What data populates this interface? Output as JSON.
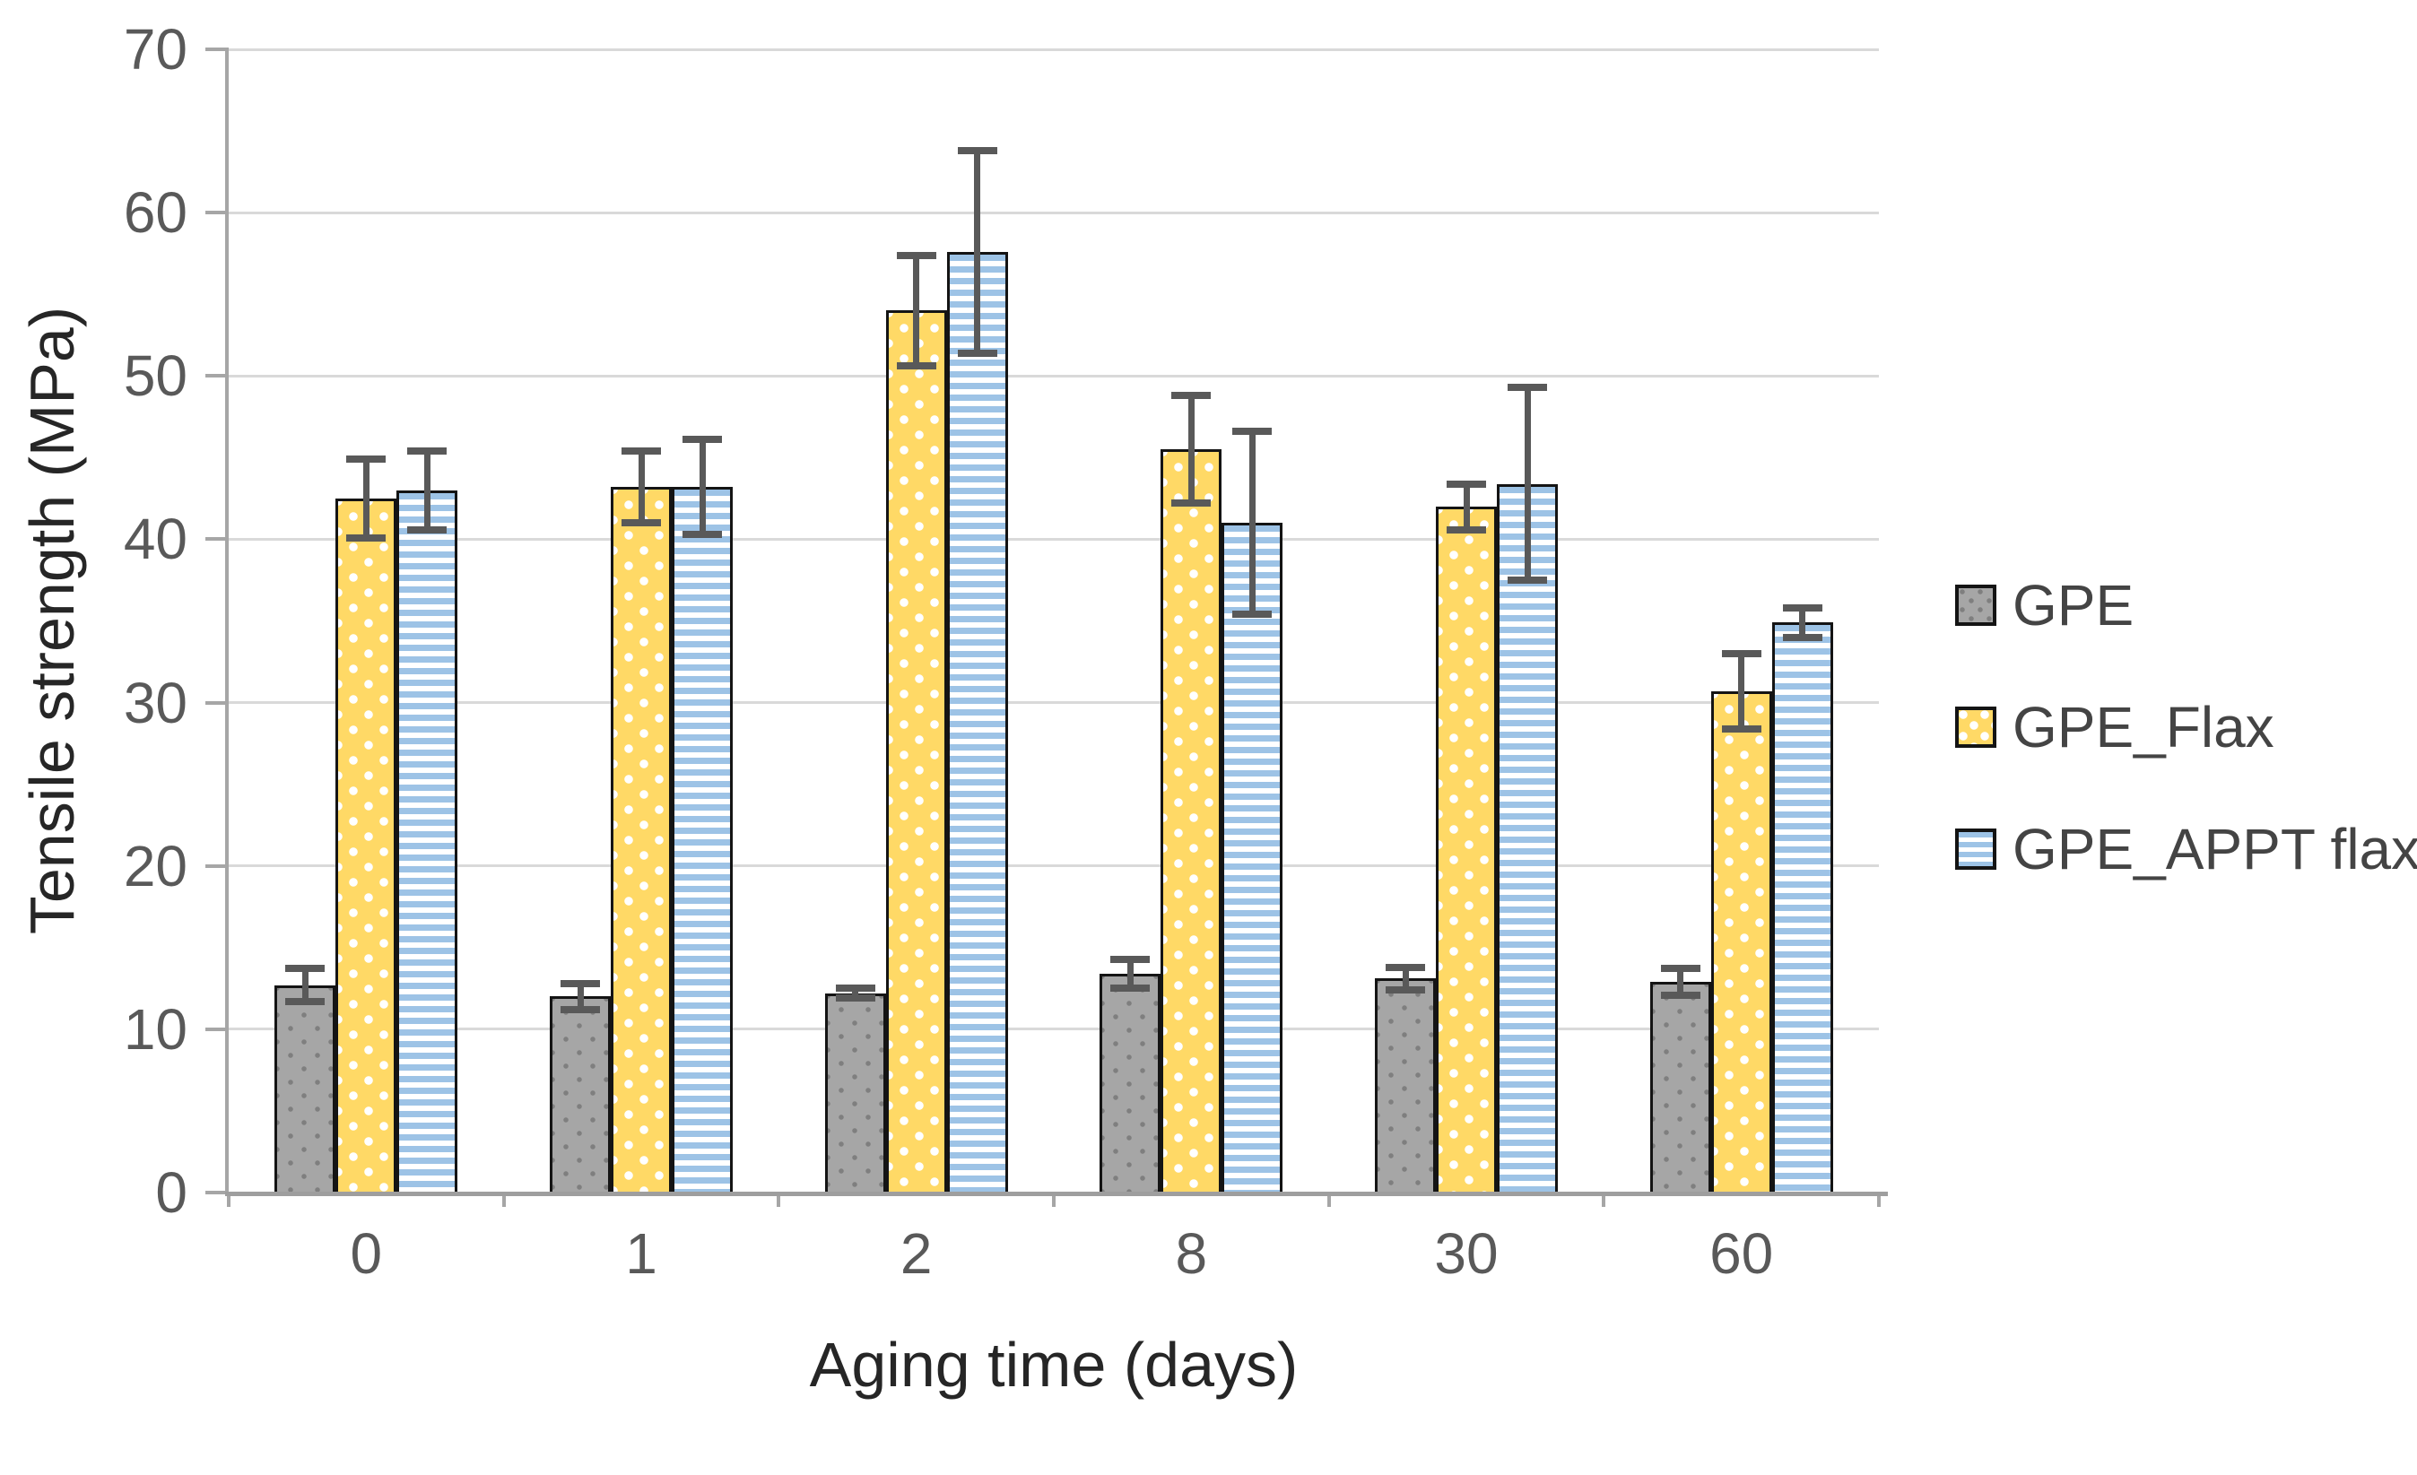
{
  "chart_data": {
    "type": "bar",
    "title": "",
    "xlabel": "Aging time (days)",
    "ylabel": "Tensile strength (MPa)",
    "categories": [
      "0",
      "1",
      "2",
      "8",
      "30",
      "60"
    ],
    "series": [
      {
        "name": "GPE",
        "pattern": "gray-dots",
        "fill": "#A6A6A6",
        "values": [
          12.7,
          12.0,
          12.2,
          13.4,
          13.1,
          12.9
        ],
        "errors": [
          1.0,
          0.8,
          0.3,
          0.9,
          0.7,
          0.8
        ]
      },
      {
        "name": "GPE_Flax",
        "pattern": "yellow-white-dots",
        "fill": "#FFD966",
        "values": [
          42.5,
          43.2,
          54.0,
          45.5,
          42.0,
          30.7
        ],
        "errors": [
          2.4,
          2.2,
          3.4,
          3.3,
          1.4,
          2.3
        ]
      },
      {
        "name": "GPE_APPT flax",
        "pattern": "blue-horizontal-stripes",
        "fill": "#9DC3E6",
        "values": [
          43.0,
          43.2,
          57.6,
          41.0,
          43.4,
          34.9
        ],
        "errors": [
          2.4,
          2.9,
          6.2,
          5.6,
          5.9,
          0.9
        ]
      }
    ],
    "ylim": [
      0,
      70
    ],
    "ytick_step": 10,
    "yticks": [
      0,
      10,
      20,
      30,
      40,
      50,
      60,
      70
    ],
    "grid": true,
    "legend_position": "right",
    "error_bar_color": "#595959",
    "bar_outline_color": "#141414",
    "axis_color": "#A6A6A6",
    "gridline_color": "#D9D9D9",
    "tick_label_color": "#595959",
    "axis_title_color": "#262626"
  }
}
